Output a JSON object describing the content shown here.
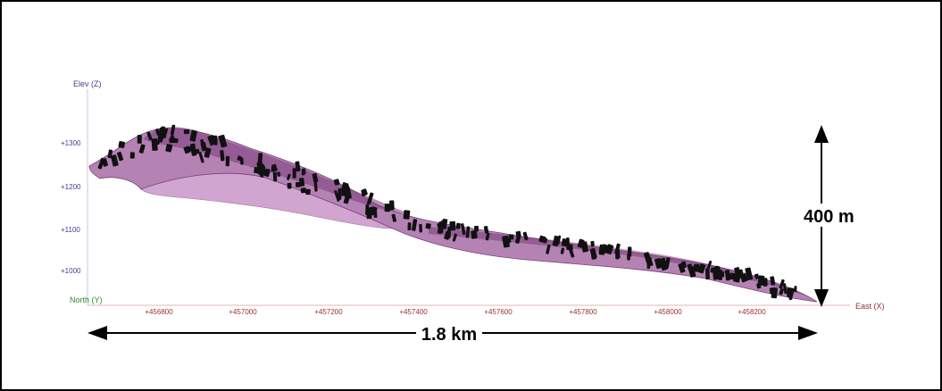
{
  "axes": {
    "z_label": "Elev (Z)",
    "y_label": "North (Y)",
    "x_label": "East (X)",
    "z_ticks": [
      "+1300",
      "+1200",
      "+1100",
      "+1000"
    ],
    "x_ticks": [
      "+456800",
      "+457000",
      "+457200",
      "+457400",
      "+457600",
      "+457800",
      "+458000",
      "+458200"
    ]
  },
  "annotations": {
    "height": "400 m",
    "width": "1.8 km"
  },
  "colors": {
    "body_fill": "#9b5a9a",
    "body_light": "#c896c8",
    "drill_marks": "#111111",
    "z_axis": "#3f3f8f",
    "y_axis": "#2e8b2e",
    "x_axis": "#9b2f2f"
  }
}
